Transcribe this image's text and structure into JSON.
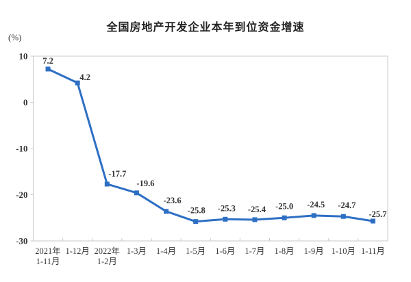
{
  "chart_data": {
    "type": "line",
    "title": "全国房地产开发企业本年到位资金增速",
    "ylabel": "(%)",
    "xlabel": "",
    "ylim": [
      -30,
      10
    ],
    "yticks": [
      10,
      0,
      -10,
      -20,
      -30
    ],
    "grid": false,
    "legend": "none",
    "line_color": "#2e6fc4",
    "axis_color": "#c9c9c9",
    "text_color": "#333333",
    "marker": "square",
    "categories": [
      "2021年1-11月",
      "1-12月",
      "2022年1-2月",
      "1-3月",
      "1-4月",
      "1-5月",
      "1-6月",
      "1-7月",
      "1-8月",
      "1-9月",
      "1-10月",
      "1-11月"
    ],
    "categories_lines": [
      [
        "2021年",
        "1-11月"
      ],
      [
        "1-12月"
      ],
      [
        "2022年",
        "1-2月"
      ],
      [
        "1-3月"
      ],
      [
        "1-4月"
      ],
      [
        "1-5月"
      ],
      [
        "1-6月"
      ],
      [
        "1-7月"
      ],
      [
        "1-8月"
      ],
      [
        "1-9月"
      ],
      [
        "1-10月"
      ],
      [
        "1-11月"
      ]
    ],
    "values": [
      7.2,
      4.2,
      -17.7,
      -19.6,
      -23.6,
      -25.8,
      -25.3,
      -25.4,
      -25.0,
      -24.5,
      -24.7,
      -25.7
    ],
    "data_labels": [
      "7.2",
      "4.2",
      "-17.7",
      "-19.6",
      "-23.6",
      "-25.8",
      "-25.3",
      "-25.4",
      "-25.0",
      "-24.5",
      "-24.7",
      "-25.7"
    ],
    "label_offsets": {
      "dx": [
        0,
        11,
        15,
        13,
        9,
        1,
        2,
        3,
        0,
        3,
        5,
        7
      ],
      "dy": [
        -8,
        -4,
        -11,
        -10,
        -12,
        -12,
        -12,
        -11,
        -13,
        -12,
        -12,
        -6
      ]
    }
  }
}
